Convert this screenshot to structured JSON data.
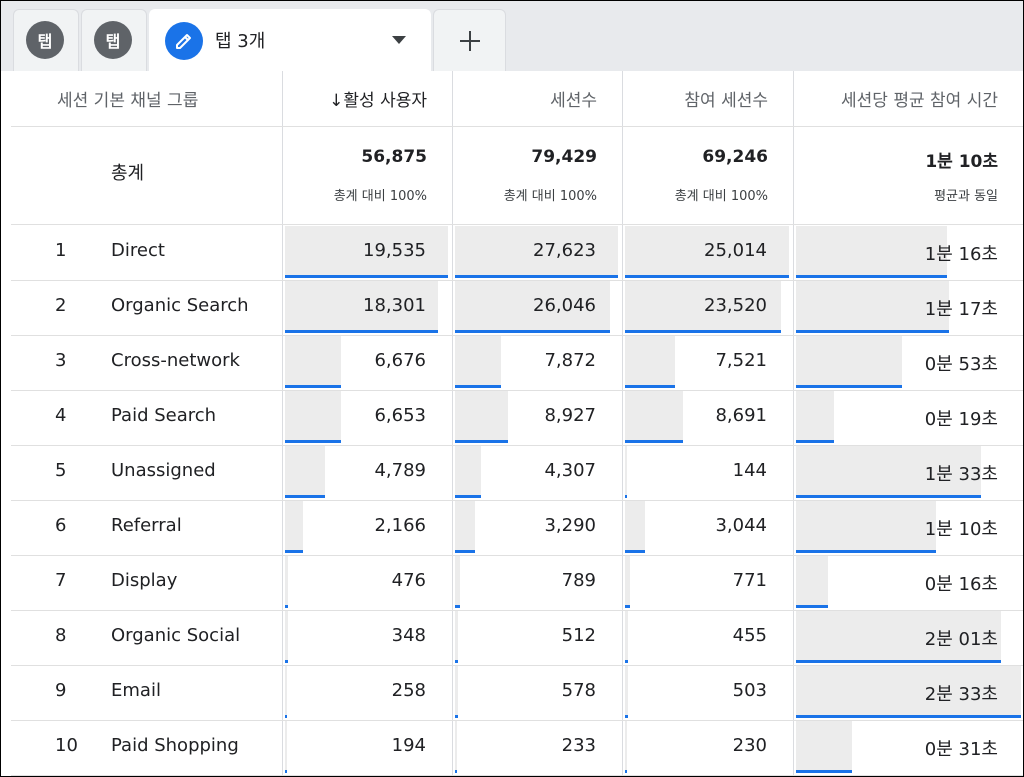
{
  "tabs": {
    "tab1_label": "탭",
    "tab2_label": "탭",
    "active_tab_label": "탭 3개"
  },
  "headers": {
    "channel_group": "세션 기본 채널 그룹",
    "active_users": "↓활성 사용자",
    "sessions": "세션수",
    "engaged_sessions": "참여 세션수",
    "avg_engagement": "세션당 평균 참여 시간"
  },
  "totals": {
    "label": "총계",
    "active_users": "56,875",
    "active_users_sub": "총계 대비 100%",
    "sessions": "79,429",
    "sessions_sub": "총계 대비 100%",
    "engaged_sessions": "69,246",
    "engaged_sessions_sub": "총계 대비 100%",
    "avg_engagement": "1분 10초",
    "avg_engagement_sub": "평균과 동일"
  },
  "rows": [
    {
      "num": "1",
      "channel": "Direct",
      "active_users": "19,535",
      "sessions": "27,623",
      "engaged_sessions": "25,014",
      "avg_engagement": "1분 16초",
      "au_fill": 0.99,
      "s_fill": 0.99,
      "e_fill": 0.99,
      "t_fill": 0.67
    },
    {
      "num": "2",
      "channel": "Organic Search",
      "active_users": "18,301",
      "sessions": "26,046",
      "engaged_sessions": "23,520",
      "avg_engagement": "1분 17초",
      "au_fill": 0.93,
      "s_fill": 0.94,
      "e_fill": 0.94,
      "t_fill": 0.68
    },
    {
      "num": "3",
      "channel": "Cross-network",
      "active_users": "6,676",
      "sessions": "7,872",
      "engaged_sessions": "7,521",
      "avg_engagement": "0분 53초",
      "au_fill": 0.34,
      "s_fill": 0.28,
      "e_fill": 0.3,
      "t_fill": 0.47
    },
    {
      "num": "4",
      "channel": "Paid Search",
      "active_users": "6,653",
      "sessions": "8,927",
      "engaged_sessions": "8,691",
      "avg_engagement": "0분 19초",
      "au_fill": 0.34,
      "s_fill": 0.32,
      "e_fill": 0.35,
      "t_fill": 0.17
    },
    {
      "num": "5",
      "channel": "Unassigned",
      "active_users": "4,789",
      "sessions": "4,307",
      "engaged_sessions": "144",
      "avg_engagement": "1분 33초",
      "au_fill": 0.24,
      "s_fill": 0.16,
      "e_fill": 0.01,
      "t_fill": 0.82
    },
    {
      "num": "6",
      "channel": "Referral",
      "active_users": "2,166",
      "sessions": "3,290",
      "engaged_sessions": "3,044",
      "avg_engagement": "1분 10초",
      "au_fill": 0.11,
      "s_fill": 0.12,
      "e_fill": 0.12,
      "t_fill": 0.62
    },
    {
      "num": "7",
      "channel": "Display",
      "active_users": "476",
      "sessions": "789",
      "engaged_sessions": "771",
      "avg_engagement": "0분 16초",
      "au_fill": 0.02,
      "s_fill": 0.03,
      "e_fill": 0.03,
      "t_fill": 0.14
    },
    {
      "num": "8",
      "channel": "Organic Social",
      "active_users": "348",
      "sessions": "512",
      "engaged_sessions": "455",
      "avg_engagement": "2분 01초",
      "au_fill": 0.02,
      "s_fill": 0.02,
      "e_fill": 0.02,
      "t_fill": 0.91
    },
    {
      "num": "9",
      "channel": "Email",
      "active_users": "258",
      "sessions": "578",
      "engaged_sessions": "503",
      "avg_engagement": "2분 33초",
      "au_fill": 0.01,
      "s_fill": 0.02,
      "e_fill": 0.02,
      "t_fill": 1.0
    },
    {
      "num": "10",
      "channel": "Paid Shopping",
      "active_users": "194",
      "sessions": "233",
      "engaged_sessions": "230",
      "avg_engagement": "0분 31초",
      "au_fill": 0.01,
      "s_fill": 0.01,
      "e_fill": 0.01,
      "t_fill": 0.25
    }
  ]
}
